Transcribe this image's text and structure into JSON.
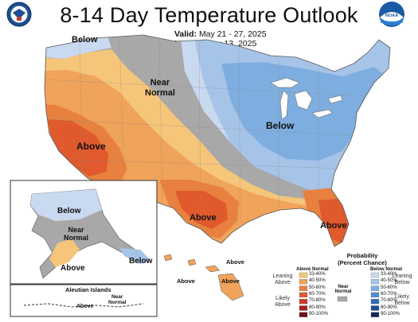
{
  "title": "8-14 Day Temperature Outlook",
  "valid": {
    "label": "Valid:",
    "value": "May 21 - 27, 2025"
  },
  "issued": {
    "label": "Issued:",
    "value": "May 13, 2025"
  },
  "map_labels": {
    "below_nw": "Below",
    "near_normal_central": "Near\nNormal",
    "below_east": "Below",
    "above_west": "Above",
    "above_texas": "Above",
    "above_florida": "Above"
  },
  "inset_labels": {
    "ak_below": "Below",
    "ak_near_normal": "Near\nNormal",
    "ak_above": "Above",
    "ak_panhandle_below": "Below",
    "aleutian_title": "Aleutian Islands",
    "aleutian_near_normal": "Near\nNormal",
    "aleutian_above": "Above",
    "hi_above_1": "Above",
    "hi_above_2": "Above",
    "hi_above_3": "Above"
  },
  "legend": {
    "title": "Probability\n(Percent Chance)",
    "above_header": "Above Normal",
    "below_header": "Below Normal",
    "near_header": "Near\nNormal",
    "leaning_above": "Leaning\nAbove",
    "likely_above": "Likely\nAbove",
    "leaning_below": "Leaning\nBelow",
    "likely_below": "Likely\nBelow",
    "ranges": [
      "33-40%",
      "40-50%",
      "50-60%",
      "60-70%",
      "70-80%",
      "80-90%",
      "90-100%"
    ],
    "above_colors": [
      "#f5c57a",
      "#f0a35a",
      "#e8813f",
      "#e05a2e",
      "#c83c2a",
      "#a01f22",
      "#6b1218"
    ],
    "below_colors": [
      "#c9d9f0",
      "#a6c4e8",
      "#7eaedf",
      "#4f8fd0",
      "#2d6ab8",
      "#1f4a95",
      "#16275f"
    ],
    "near_color": "#a8a8a8"
  },
  "colors": {
    "below_light": "#c9d9f0",
    "below_mid": "#a6c4e8",
    "below_strong": "#7eaedf",
    "near": "#a8a8a8",
    "above_light": "#f5c57a",
    "above_mid": "#f0a35a",
    "above_strong": "#e8813f",
    "above_deep": "#e05a2e"
  },
  "logos": {
    "left": "Department of Commerce seal",
    "right": "NOAA logo"
  }
}
